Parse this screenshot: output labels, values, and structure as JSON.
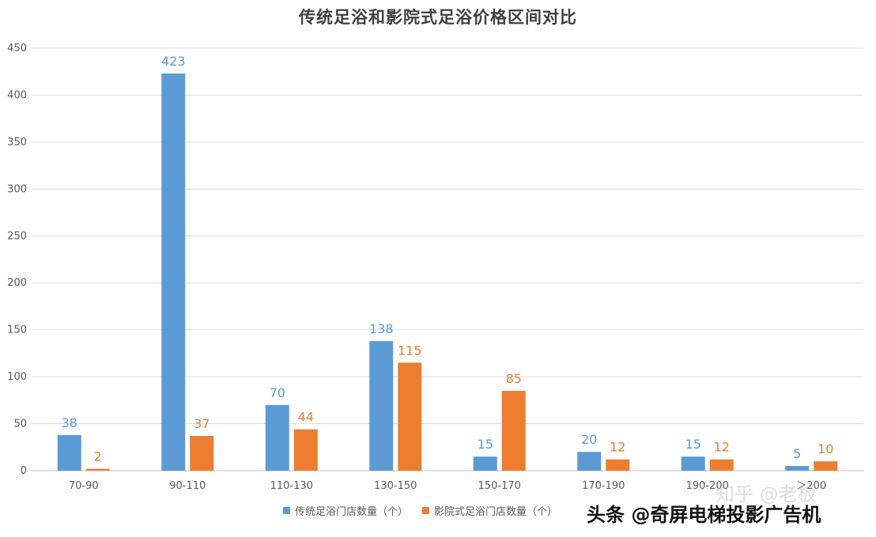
{
  "chart_data": {
    "type": "bar",
    "title": "传统足浴和影院式足浴价格区间对比",
    "categories": [
      "70-90",
      "90-110",
      "110-130",
      "130-150",
      "150-170",
      "170-190",
      "190-200",
      "＞200"
    ],
    "series": [
      {
        "name": "传统足浴门店数量（个）",
        "color": "#5B9BD5",
        "values": [
          38,
          423,
          70,
          138,
          15,
          20,
          15,
          5
        ]
      },
      {
        "name": "影院式足浴门店数量（个）",
        "color": "#ED7D31",
        "values": [
          2,
          37,
          44,
          115,
          85,
          12,
          12,
          10
        ]
      }
    ],
    "ylim": [
      0,
      450
    ],
    "yticks": [
      0,
      50,
      100,
      150,
      200,
      250,
      300,
      350,
      400,
      450
    ],
    "grid": true,
    "legend_position": "bottom"
  },
  "watermarks": {
    "zhihu": "知乎 @老板",
    "toutiao": "头条 @奇屏电梯投影广告机"
  }
}
